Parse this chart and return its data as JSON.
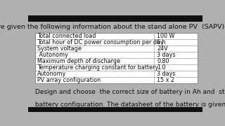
{
  "title": "Your are given the following information about the stand alone PV  (SAPV) system.",
  "table_rows": [
    [
      "Total connected load",
      "100 W"
    ],
    [
      "Total hour of DC power consumption per day",
      "6 h"
    ],
    [
      "System voltage",
      "24V"
    ],
    [
      " Autonomy",
      "3 days"
    ],
    [
      "Maximum depth of discharge",
      "0.80"
    ],
    [
      "Temperature charging constant for battery",
      "1.0"
    ],
    [
      "Autonomy",
      "3 days"
    ],
    [
      "PV array configuration",
      "15 x 2"
    ]
  ],
  "footer_line1": " Design and choose  the correct size of battery in Ah and  state the",
  "footer_line2": " battery configuration. The datasheet of the battery is given in the  slide.",
  "bg_color": "#b0b0b0",
  "top_bar_color": "#111111",
  "bottom_bar_color": "#111111",
  "table_bg": "#ffffff",
  "table_border_color": "#888888",
  "text_color": "#111111",
  "title_fontsize": 6.8,
  "table_fontsize": 5.8,
  "footer_fontsize": 6.5,
  "top_bar_height": 0.07,
  "bottom_bar_height": 0.05
}
